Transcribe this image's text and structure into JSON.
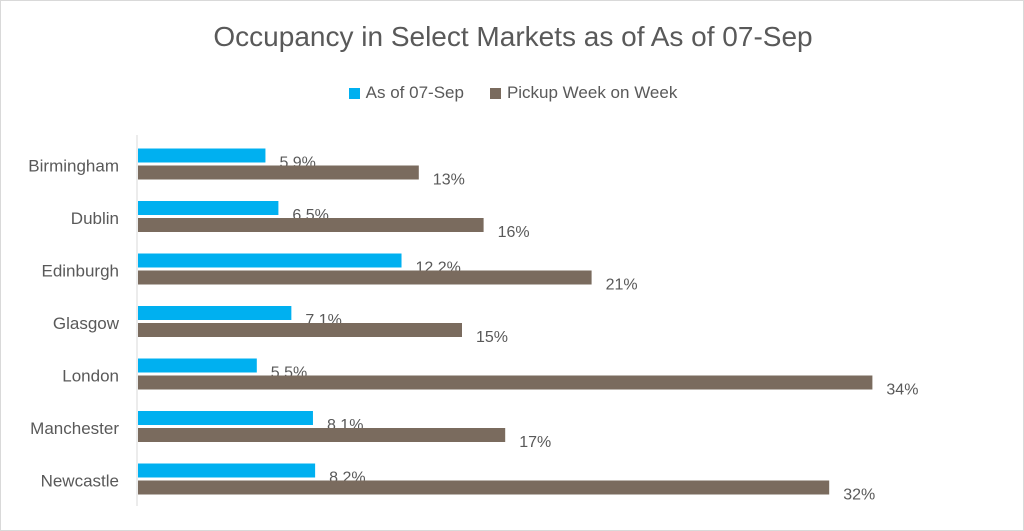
{
  "chart_data": {
    "type": "bar",
    "orientation": "horizontal",
    "title": "Occupancy in Select Markets as of As of 07-Sep",
    "legend_position": "top",
    "categories": [
      "Birmingham",
      "Dublin",
      "Edinburgh",
      "Glasgow",
      "London",
      "Manchester",
      "Newcastle"
    ],
    "series": [
      {
        "name": "As of 07-Sep",
        "color": "#00b0f0",
        "values": [
          5.9,
          6.5,
          12.2,
          7.1,
          5.5,
          8.1,
          8.2
        ],
        "labels": [
          "5.9%",
          "6.5%",
          "12.2%",
          "7.1%",
          "5.5%",
          "8.1%",
          "8.2%"
        ]
      },
      {
        "name": "Pickup Week on Week",
        "color": "#7a6b5e",
        "values": [
          13,
          16,
          21,
          15,
          34,
          17,
          32
        ],
        "labels": [
          "13%",
          "16%",
          "21%",
          "15%",
          "34%",
          "17%",
          "32%"
        ]
      }
    ],
    "xlim": [
      0,
      40
    ],
    "grid": false
  }
}
